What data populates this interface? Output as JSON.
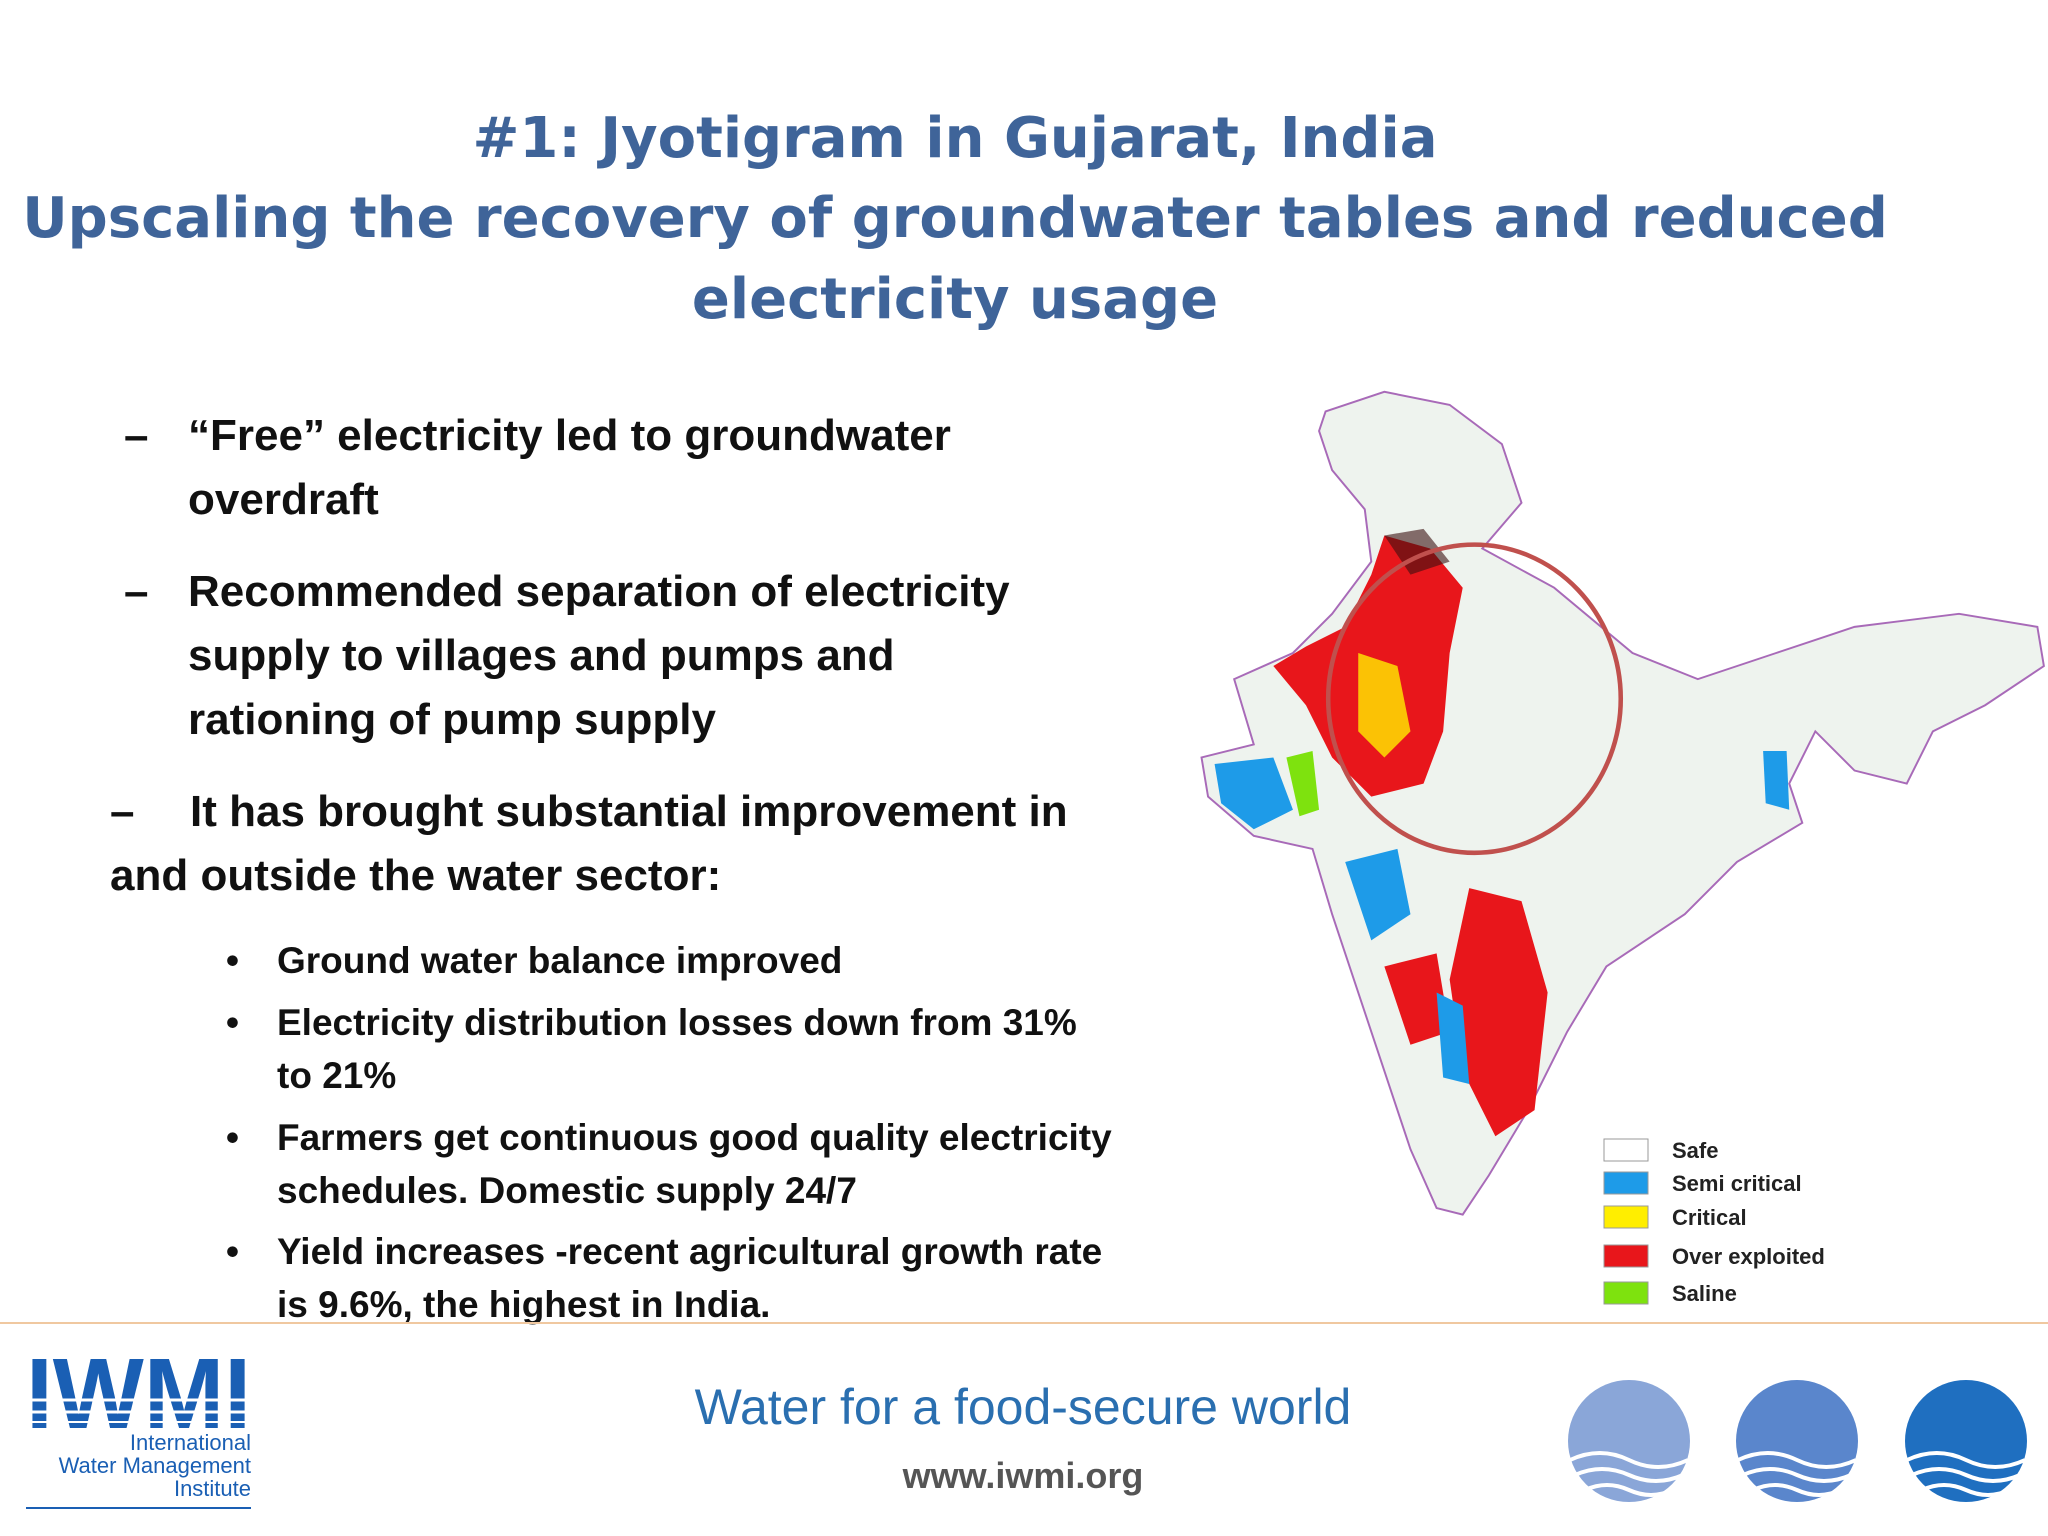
{
  "title": [
    "#1: Jyotigram in Gujarat, India",
    "Upscaling the recovery of groundwater tables and reduced",
    "electricity usage"
  ],
  "bullets": [
    {
      "marker": "–",
      "lines": [
        "“Free” electricity led to groundwater",
        "overdraft"
      ]
    },
    {
      "marker": "–",
      "lines": [
        "Recommended separation of electricity",
        "supply to villages and pumps and",
        "rationing of pump supply"
      ]
    },
    {
      "marker": "–",
      "lines": [
        "It has brought substantial improvement in",
        "and outside the water sector:"
      ]
    }
  ],
  "sub_bullets": [
    {
      "marker": "•",
      "lines": [
        "Ground water balance improved"
      ]
    },
    {
      "marker": "•",
      "lines": [
        "Electricity distribution losses down from 31%",
        "to 21%"
      ]
    },
    {
      "marker": "•",
      "lines": [
        "Farmers get continuous good quality electricity",
        "schedules. Domestic supply 24/7"
      ]
    },
    {
      "marker": "•",
      "lines": [
        "Yield increases -recent agricultural growth rate",
        "is 9.6%, the highest in India."
      ]
    }
  ],
  "map_legend": [
    {
      "label": "Safe",
      "color": "#ffffff"
    },
    {
      "label": "Semi critical",
      "color": "#1e9be8"
    },
    {
      "label": "Critical",
      "color": "#ffee00"
    },
    {
      "label": "Over exploited",
      "color": "#e8161b"
    },
    {
      "label": "Saline",
      "color": "#7ee20e"
    }
  ],
  "logo": {
    "mark": "IWMI",
    "lines": [
      "International",
      "Water Management",
      "Institute"
    ]
  },
  "footer": {
    "tagline": "Water for a food-secure world",
    "url": "www.iwmi.org"
  }
}
